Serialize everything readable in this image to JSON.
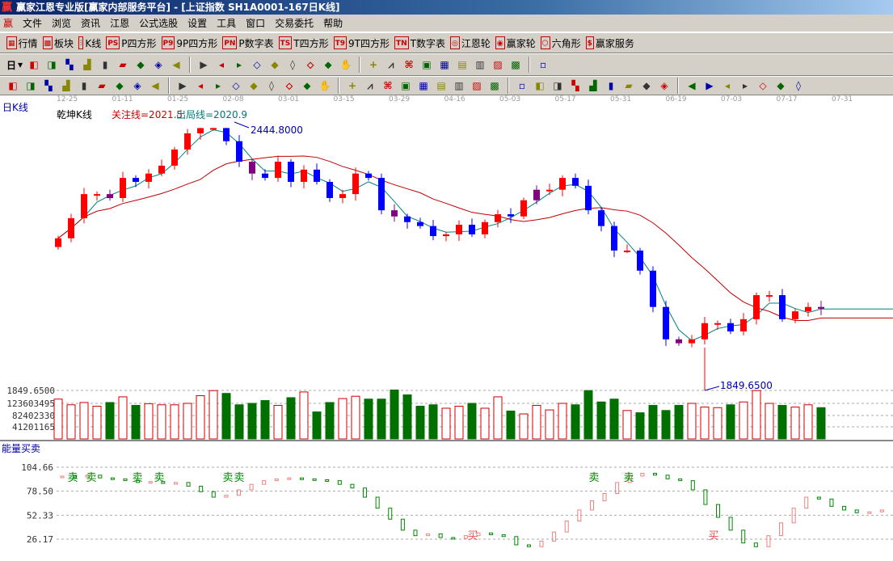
{
  "window": {
    "title": "赢家江恩专业版[赢家内部服务平台] - [上证指数   SH1A0001-167日K线]",
    "logo": "赢"
  },
  "menu": [
    "文件",
    "浏览",
    "资讯",
    "江恩",
    "公式选股",
    "设置",
    "工具",
    "窗口",
    "交易委托",
    "帮助"
  ],
  "toolbar1": [
    {
      "icon": "quote-table-icon",
      "glyph": "▦",
      "label": "行情"
    },
    {
      "icon": "sector-blocks-icon",
      "glyph": "▩",
      "label": "板块"
    },
    {
      "icon": "candlestick-icon",
      "glyph": "⫶",
      "label": "K线"
    },
    {
      "icon": "ps-icon",
      "glyph": "PS",
      "label": "P四方形"
    },
    {
      "icon": "p9-icon",
      "glyph": "P9",
      "label": "9P四方形"
    },
    {
      "icon": "pn-icon",
      "glyph": "PN",
      "label": "P数字表"
    },
    {
      "icon": "ts-icon",
      "glyph": "TS",
      "label": "T四方形"
    },
    {
      "icon": "t9-icon",
      "glyph": "T9",
      "label": "9T四方形"
    },
    {
      "icon": "tn-icon",
      "glyph": "TN",
      "label": "T数字表"
    },
    {
      "icon": "gann-wheel-icon",
      "glyph": "◎",
      "label": "江恩轮"
    },
    {
      "icon": "winner-wheel-icon",
      "glyph": "◉",
      "label": "赢家轮"
    },
    {
      "icon": "hexagon-icon",
      "glyph": "⬡",
      "label": "六角形"
    },
    {
      "icon": "dollar-icon",
      "glyph": "$",
      "label": "赢家服务"
    }
  ],
  "toolbar2": {
    "period": "日",
    "icons": [
      "pattern-icon",
      "notes-icon",
      "ma3-icon",
      "ma9-icon",
      "candle-type-icon",
      "fan-icon",
      "flag-icon",
      "first-icon",
      "last-icon",
      "prev-icon",
      "next-icon",
      "zoom-left-icon",
      "zoom-right-icon",
      "zoom-h-icon",
      "zoom-in-icon",
      "zoom-out-icon",
      "zoom-v-icon",
      "hand-icon",
      "crosshair-icon",
      "line-icon",
      "node-icon",
      "layout-icon",
      "calendar-icon",
      "calculator-icon",
      "report-icon",
      "save-icon",
      "network-icon",
      "printer-icon"
    ]
  },
  "toolbar3": {
    "icons": [
      "pen-icon",
      "grid-icon",
      "gold-icon",
      "gold2-icon",
      "f-icon",
      "spiral-icon",
      "brush-icon",
      "circle-icon",
      "hash-icon",
      "n2-icon",
      "angle-icon",
      "target-icon",
      "star-icon",
      "square-icon",
      "parallel-icon",
      "god-icon",
      "win-icon",
      "ladder-icon",
      "measure-icon",
      "box-icon",
      "fan-lines-icon",
      "box-fan-icon",
      "box-fan2-icon",
      "angle-lines-icon",
      "wave-icon",
      "grid2-icon",
      "grid3-icon",
      "channels-icon",
      "table-icon",
      "percent-line-icon",
      "percent-icon",
      "percent-levels-icon",
      "gold-coin-icon",
      "gold-levels-icon",
      "bull-icon",
      "sine-icon",
      "gold-bar-icon",
      "j-angle-icon",
      "f-angle-icon",
      "gold-angle-icon",
      "god-angle-icon",
      "win-angle-icon",
      "four-angle-icon"
    ]
  },
  "dates": [
    "12-25",
    "01-11",
    "01-25",
    "02-08",
    "03-01",
    "03-15",
    "03-29",
    "04-16",
    "05-03",
    "05-17",
    "05-31",
    "06-19",
    "07-03",
    "07-17",
    "07-31"
  ],
  "chart": {
    "period_label": "日K线",
    "indicator": "乾坤K线",
    "focus_line": "关注线=2021.5",
    "exit_line": "出局线=2020.9",
    "high_label": "2444.8000",
    "low_label": "1849.6500",
    "colors": {
      "up": "#ff0000",
      "down": "#0000ff",
      "ma_short": "#008080",
      "ma_long": "#c00000"
    }
  },
  "chart_data": {
    "type": "candlestick",
    "closes": [
      2192,
      2238,
      2293,
      2293,
      2284,
      2330,
      2321,
      2340,
      2358,
      2395,
      2432,
      2444,
      2444,
      2414,
      2367,
      2340,
      2330,
      2367,
      2321,
      2349,
      2321,
      2284,
      2293,
      2340,
      2330,
      2256,
      2242,
      2229,
      2220,
      2197,
      2201,
      2223,
      2201,
      2229,
      2247,
      2242,
      2279,
      2303,
      2303,
      2330,
      2312,
      2256,
      2220,
      2164,
      2164,
      2118,
      2035,
      1961,
      1952,
      1961,
      1998,
      1998,
      1979,
      2007,
      2062,
      2062,
      2007,
      2025,
      2035,
      2031
    ],
    "high": 2444.8,
    "low": 1849.65,
    "volume": {
      "axis": [
        "1849.6500",
        "123603495",
        "82402330",
        "41201165"
      ],
      "values": [
        140,
        120,
        128,
        115,
        128,
        148,
        118,
        124,
        120,
        120,
        125,
        152,
        170,
        160,
        120,
        125,
        135,
        118,
        145,
        165,
        95,
        128,
        142,
        150,
        140,
        140,
        172,
        155,
        115,
        120,
        108,
        115,
        125,
        108,
        148,
        98,
        88,
        118,
        102,
        125,
        120,
        170,
        130,
        140,
        100,
        92,
        118,
        100,
        118,
        125,
        112,
        110,
        120,
        130,
        170,
        125,
        118,
        112,
        120,
        110
      ]
    },
    "energy": {
      "label": "能量买卖",
      "axis": [
        "104.66",
        "78.50",
        "52.33",
        "26.17"
      ],
      "values": [
        95,
        94,
        96,
        93,
        92,
        90,
        88,
        89,
        87,
        88,
        84,
        78,
        72,
        74,
        80,
        86,
        90,
        92,
        93,
        92,
        91,
        90,
        86,
        82,
        72,
        60,
        48,
        36,
        30,
        32,
        28,
        27,
        30,
        33,
        31,
        29,
        20,
        18,
        24,
        34,
        46,
        58,
        68,
        76,
        88,
        95,
        98,
        96,
        92,
        90,
        80,
        64,
        50,
        36,
        22,
        18,
        30,
        44,
        60,
        72,
        70,
        62,
        58,
        55,
        56,
        58
      ]
    },
    "signals": [
      {
        "text": "卖"
      },
      {
        "text": "卖"
      },
      {
        "text": "卖"
      },
      {
        "text": "卖"
      },
      {
        "text": "卖"
      },
      {
        "text": "卖"
      },
      {
        "text": "卖"
      },
      {
        "text": "卖"
      },
      {
        "text": "买"
      },
      {
        "text": "买"
      }
    ]
  }
}
